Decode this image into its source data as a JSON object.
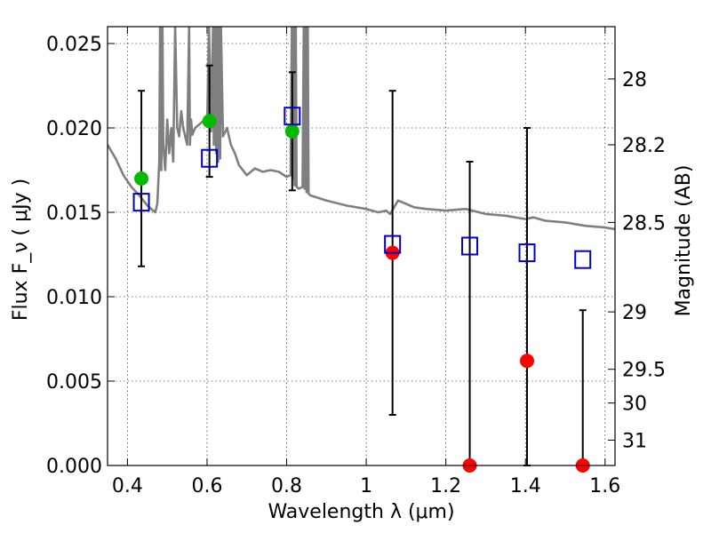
{
  "chart_data": {
    "type": "scatter",
    "xlabel": "Wavelength  λ (μm)",
    "ylabel": "Flux  F_ν  ( μJy )",
    "y2label": "Magnitude (AB)",
    "xlim": [
      0.35,
      1.625
    ],
    "ylim": [
      0.0,
      0.026
    ],
    "grid": true,
    "x_ticks": [
      0.4,
      0.6,
      0.8,
      1.0,
      1.2,
      1.4,
      1.6
    ],
    "x_tick_labels": [
      "0.4",
      "0.6",
      "0.8",
      "1",
      "1.2",
      "1.4",
      "1.6"
    ],
    "y_ticks": [
      0.0,
      0.005,
      0.01,
      0.015,
      0.02,
      0.025
    ],
    "y_tick_labels": [
      "0.000",
      "0.005",
      "0.010",
      "0.015",
      "0.020",
      "0.025"
    ],
    "y2_ticks": [
      {
        "label": "28",
        "flux": 0.0229
      },
      {
        "label": "28.2",
        "flux": 0.019
      },
      {
        "label": "28.5",
        "flux": 0.0144
      },
      {
        "label": "29",
        "flux": 0.0091
      },
      {
        "label": "29.5",
        "flux": 0.0057
      },
      {
        "label": "30",
        "flux": 0.0037
      },
      {
        "label": "31",
        "flux": 0.0015
      }
    ],
    "series": [
      {
        "marker": "circle",
        "color": "#00bb00",
        "points": [
          {
            "x": 0.435,
            "y": 0.017,
            "yerr_low": 0.0118,
            "yerr_high": 0.0222
          },
          {
            "x": 0.606,
            "y": 0.0204,
            "yerr_low": 0.0171,
            "yerr_high": 0.0237
          },
          {
            "x": 0.814,
            "y": 0.0198,
            "yerr_low": 0.0163,
            "yerr_high": 0.0233
          }
        ]
      },
      {
        "marker": "circle",
        "color": "#ff0000",
        "points": [
          {
            "x": 1.066,
            "y": 0.0126,
            "yerr_low": 0.003,
            "yerr_high": 0.0222
          },
          {
            "x": 1.26,
            "y": 0.0,
            "yerr_low": 0.0,
            "yerr_high": 0.018
          },
          {
            "x": 1.404,
            "y": 0.0062,
            "yerr_low": 0.0,
            "yerr_high": 0.02
          },
          {
            "x": 1.544,
            "y": 0.0,
            "yerr_low": 0.0,
            "yerr_high": 0.0092
          }
        ]
      },
      {
        "marker": "open-square",
        "color": "#0000cc",
        "points": [
          {
            "x": 0.435,
            "y": 0.0156
          },
          {
            "x": 0.606,
            "y": 0.0182
          },
          {
            "x": 0.814,
            "y": 0.0207
          },
          {
            "x": 1.066,
            "y": 0.0131
          },
          {
            "x": 1.26,
            "y": 0.013
          },
          {
            "x": 1.404,
            "y": 0.0126
          },
          {
            "x": 1.544,
            "y": 0.0122
          }
        ]
      },
      {
        "marker": "line",
        "color": "#7f7f7f",
        "x": [
          0.35,
          0.37,
          0.39,
          0.41,
          0.43,
          0.45,
          0.47,
          0.475,
          0.48,
          0.482,
          0.485,
          0.488,
          0.49,
          0.495,
          0.5,
          0.505,
          0.51,
          0.515,
          0.52,
          0.525,
          0.53,
          0.535,
          0.54,
          0.55,
          0.555,
          0.557,
          0.56,
          0.563,
          0.57,
          0.58,
          0.59,
          0.6,
          0.605,
          0.61,
          0.615,
          0.617,
          0.62,
          0.623,
          0.625,
          0.628,
          0.63,
          0.633,
          0.635,
          0.64,
          0.65,
          0.66,
          0.67,
          0.68,
          0.7,
          0.72,
          0.74,
          0.76,
          0.78,
          0.8,
          0.81,
          0.813,
          0.815,
          0.818,
          0.82,
          0.823,
          0.825,
          0.83,
          0.84,
          0.843,
          0.845,
          0.848,
          0.85,
          0.853,
          0.855,
          0.86,
          0.9,
          0.95,
          1.0,
          1.03,
          1.05,
          1.06,
          1.08,
          1.1,
          1.12,
          1.15,
          1.2,
          1.25,
          1.3,
          1.35,
          1.4,
          1.42,
          1.45,
          1.5,
          1.55,
          1.6,
          1.625
        ],
        "y": [
          0.019,
          0.0182,
          0.0172,
          0.0165,
          0.016,
          0.0154,
          0.015,
          0.0155,
          0.018,
          0.026,
          0.0175,
          0.026,
          0.019,
          0.0175,
          0.0205,
          0.0185,
          0.02,
          0.018,
          0.026,
          0.02,
          0.0195,
          0.021,
          0.02,
          0.019,
          0.026,
          0.019,
          0.0205,
          0.0196,
          0.02,
          0.0202,
          0.0204,
          0.0201,
          0.026,
          0.0198,
          0.026,
          0.019,
          0.026,
          0.0185,
          0.026,
          0.018,
          0.026,
          0.0182,
          0.026,
          0.0195,
          0.02,
          0.019,
          0.0185,
          0.0178,
          0.0172,
          0.0176,
          0.0174,
          0.0175,
          0.0174,
          0.0171,
          0.0172,
          0.026,
          0.017,
          0.026,
          0.0166,
          0.026,
          0.0165,
          0.0164,
          0.0165,
          0.026,
          0.0164,
          0.026,
          0.0162,
          0.026,
          0.0161,
          0.016,
          0.0157,
          0.0154,
          0.0152,
          0.015,
          0.0151,
          0.0149,
          0.0157,
          0.0155,
          0.0153,
          0.0152,
          0.0151,
          0.0152,
          0.0149,
          0.0148,
          0.0146,
          0.0147,
          0.0145,
          0.0144,
          0.0142,
          0.0141,
          0.014
        ]
      }
    ]
  }
}
